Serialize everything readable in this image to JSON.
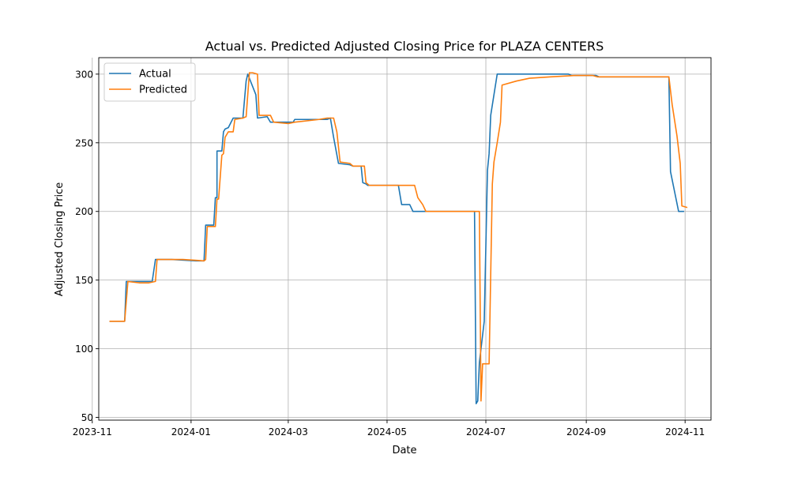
{
  "chart_data": {
    "type": "line",
    "title": "Actual vs. Predicted Adjusted Closing Price for PLAZA CENTERS",
    "xlabel": "Date",
    "ylabel": "Adjusted Closing Price",
    "xlim": [
      "2023-11-05",
      "2024-11-17"
    ],
    "ylim": [
      48,
      312
    ],
    "x_ticks": [
      "2023-11",
      "2024-01",
      "2024-03",
      "2024-05",
      "2024-07",
      "2024-09",
      "2024-11"
    ],
    "y_ticks": [
      50,
      100,
      150,
      200,
      250,
      300
    ],
    "grid": true,
    "legend_position": "top-left",
    "colors": {
      "Actual": "#1f77b4",
      "Predicted": "#ff7f0e"
    },
    "series": [
      {
        "name": "Actual",
        "points": [
          [
            "2023-11-12",
            120
          ],
          [
            "2023-11-21",
            120
          ],
          [
            "2023-11-22",
            149
          ],
          [
            "2023-12-08",
            149
          ],
          [
            "2023-12-10",
            165
          ],
          [
            "2023-12-20",
            165
          ],
          [
            "2024-01-04",
            164
          ],
          [
            "2024-01-09",
            164
          ],
          [
            "2024-01-10",
            190
          ],
          [
            "2024-01-15",
            190
          ],
          [
            "2024-01-16",
            210
          ],
          [
            "2024-01-17",
            210
          ],
          [
            "2024-01-17",
            244
          ],
          [
            "2024-01-20",
            244
          ],
          [
            "2024-01-21",
            258
          ],
          [
            "2024-01-22",
            260
          ],
          [
            "2024-01-24",
            261
          ],
          [
            "2024-01-27",
            268
          ],
          [
            "2024-02-02",
            268
          ],
          [
            "2024-02-04",
            295
          ],
          [
            "2024-02-05",
            300
          ],
          [
            "2024-02-10",
            285
          ],
          [
            "2024-02-11",
            268
          ],
          [
            "2024-02-17",
            269
          ],
          [
            "2024-02-19",
            265
          ],
          [
            "2024-03-04",
            265
          ],
          [
            "2024-03-05",
            267
          ],
          [
            "2024-03-25",
            267
          ],
          [
            "2024-03-27",
            268
          ],
          [
            "2024-03-29",
            254
          ],
          [
            "2024-04-01",
            235
          ],
          [
            "2024-04-08",
            234
          ],
          [
            "2024-04-10",
            233
          ],
          [
            "2024-04-15",
            233
          ],
          [
            "2024-04-16",
            221
          ],
          [
            "2024-04-18",
            220
          ],
          [
            "2024-04-19",
            219
          ],
          [
            "2024-05-08",
            219
          ],
          [
            "2024-05-10",
            205
          ],
          [
            "2024-05-15",
            205
          ],
          [
            "2024-05-17",
            200
          ],
          [
            "2024-06-24",
            200
          ],
          [
            "2024-06-25",
            60
          ],
          [
            "2024-06-26",
            62
          ],
          [
            "2024-06-27",
            90
          ],
          [
            "2024-06-30",
            120
          ],
          [
            "2024-07-02",
            230
          ],
          [
            "2024-07-03",
            242
          ],
          [
            "2024-07-04",
            270
          ],
          [
            "2024-07-08",
            300
          ],
          [
            "2024-08-21",
            300
          ],
          [
            "2024-08-23",
            299
          ],
          [
            "2024-09-07",
            299
          ],
          [
            "2024-09-09",
            298
          ],
          [
            "2024-10-22",
            298
          ],
          [
            "2024-10-23",
            229
          ],
          [
            "2024-10-28",
            200
          ],
          [
            "2024-10-31",
            200
          ]
        ]
      },
      {
        "name": "Predicted",
        "points": [
          [
            "2023-11-12",
            120
          ],
          [
            "2023-11-21",
            120
          ],
          [
            "2023-11-23",
            149
          ],
          [
            "2023-11-30",
            148
          ],
          [
            "2023-12-06",
            148
          ],
          [
            "2023-12-10",
            149
          ],
          [
            "2023-12-11",
            165
          ],
          [
            "2023-12-27",
            165
          ],
          [
            "2024-01-09",
            164
          ],
          [
            "2024-01-10",
            165
          ],
          [
            "2024-01-11",
            189
          ],
          [
            "2024-01-16",
            189
          ],
          [
            "2024-01-17",
            209
          ],
          [
            "2024-01-18",
            209
          ],
          [
            "2024-01-20",
            241
          ],
          [
            "2024-01-21",
            242
          ],
          [
            "2024-01-22",
            254
          ],
          [
            "2024-01-24",
            258
          ],
          [
            "2024-01-27",
            258
          ],
          [
            "2024-01-28",
            267
          ],
          [
            "2024-02-02",
            268
          ],
          [
            "2024-02-04",
            269
          ],
          [
            "2024-02-06",
            301
          ],
          [
            "2024-02-08",
            301
          ],
          [
            "2024-02-11",
            300
          ],
          [
            "2024-02-12",
            270
          ],
          [
            "2024-02-19",
            270
          ],
          [
            "2024-02-21",
            265
          ],
          [
            "2024-03-01",
            264
          ],
          [
            "2024-03-05",
            265
          ],
          [
            "2024-03-20",
            267
          ],
          [
            "2024-03-25",
            268
          ],
          [
            "2024-03-29",
            268
          ],
          [
            "2024-03-31",
            258
          ],
          [
            "2024-04-02",
            236
          ],
          [
            "2024-04-08",
            235
          ],
          [
            "2024-04-10",
            233
          ],
          [
            "2024-04-17",
            233
          ],
          [
            "2024-04-18",
            221
          ],
          [
            "2024-04-20",
            219
          ],
          [
            "2024-05-18",
            219
          ],
          [
            "2024-05-20",
            210
          ],
          [
            "2024-05-23",
            205
          ],
          [
            "2024-05-25",
            200
          ],
          [
            "2024-06-12",
            200
          ],
          [
            "2024-06-15",
            200
          ],
          [
            "2024-06-27",
            200
          ],
          [
            "2024-06-28",
            62
          ],
          [
            "2024-06-29",
            89
          ],
          [
            "2024-07-03",
            89
          ],
          [
            "2024-07-05",
            220
          ],
          [
            "2024-07-06",
            236
          ],
          [
            "2024-07-08",
            250
          ],
          [
            "2024-07-10",
            265
          ],
          [
            "2024-07-11",
            292
          ],
          [
            "2024-07-20",
            295
          ],
          [
            "2024-07-28",
            297
          ],
          [
            "2024-08-10",
            298
          ],
          [
            "2024-08-25",
            299
          ],
          [
            "2024-09-05",
            299
          ],
          [
            "2024-09-08",
            298
          ],
          [
            "2024-10-22",
            298
          ],
          [
            "2024-10-24",
            278
          ],
          [
            "2024-10-27",
            255
          ],
          [
            "2024-10-29",
            235
          ],
          [
            "2024-10-30",
            204
          ],
          [
            "2024-11-02",
            203
          ]
        ]
      }
    ]
  }
}
